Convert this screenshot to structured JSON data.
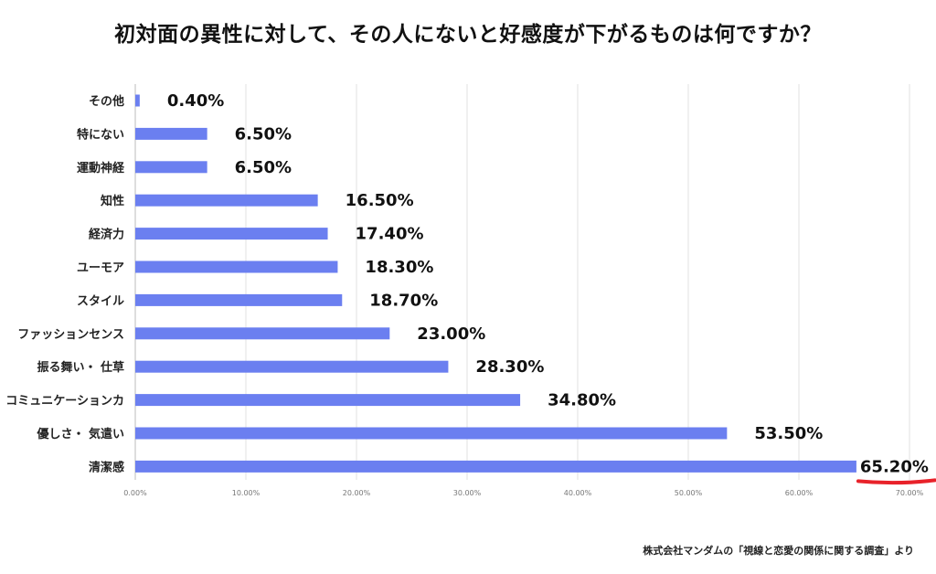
{
  "title": "初対面の異性に対して、その人にないと好感度が下がるものは何ですか？",
  "source": "株式会社マンダムの「視線と恋愛の関係に関する調査」より",
  "chart_data": {
    "type": "bar",
    "orientation": "horizontal",
    "title": "初対面の異性に対して、その人にないと好感度が下がるものは何ですか？",
    "categories": [
      "その他",
      "特にない",
      "運動神経",
      "知性",
      "経済力",
      "ユーモア",
      "スタイル",
      "ファッションセンス",
      "振る舞い・ 仕草",
      "コミュニケーションカ",
      "優しさ・ 気遣い",
      "清潔感"
    ],
    "values": [
      0.4,
      6.5,
      6.5,
      16.5,
      17.4,
      18.3,
      18.7,
      23.0,
      28.3,
      34.8,
      53.5,
      65.2
    ],
    "value_labels": [
      "0.40%",
      "6.50%",
      "6.50%",
      "16.50%",
      "17.40%",
      "18.30%",
      "18.70%",
      "23.00%",
      "28.30%",
      "34.80%",
      "53.50%",
      "65.20%"
    ],
    "xticks": [
      "0.00%",
      "10.00%",
      "20.00%",
      "30.00%",
      "40.00%",
      "50.00%",
      "60.00%",
      "70.00%"
    ],
    "xlim": [
      0,
      70
    ],
    "grid": true,
    "bar_color": "#6b7ff0",
    "highlight_color": "#e8222a",
    "highlight_category": "清潔感"
  }
}
